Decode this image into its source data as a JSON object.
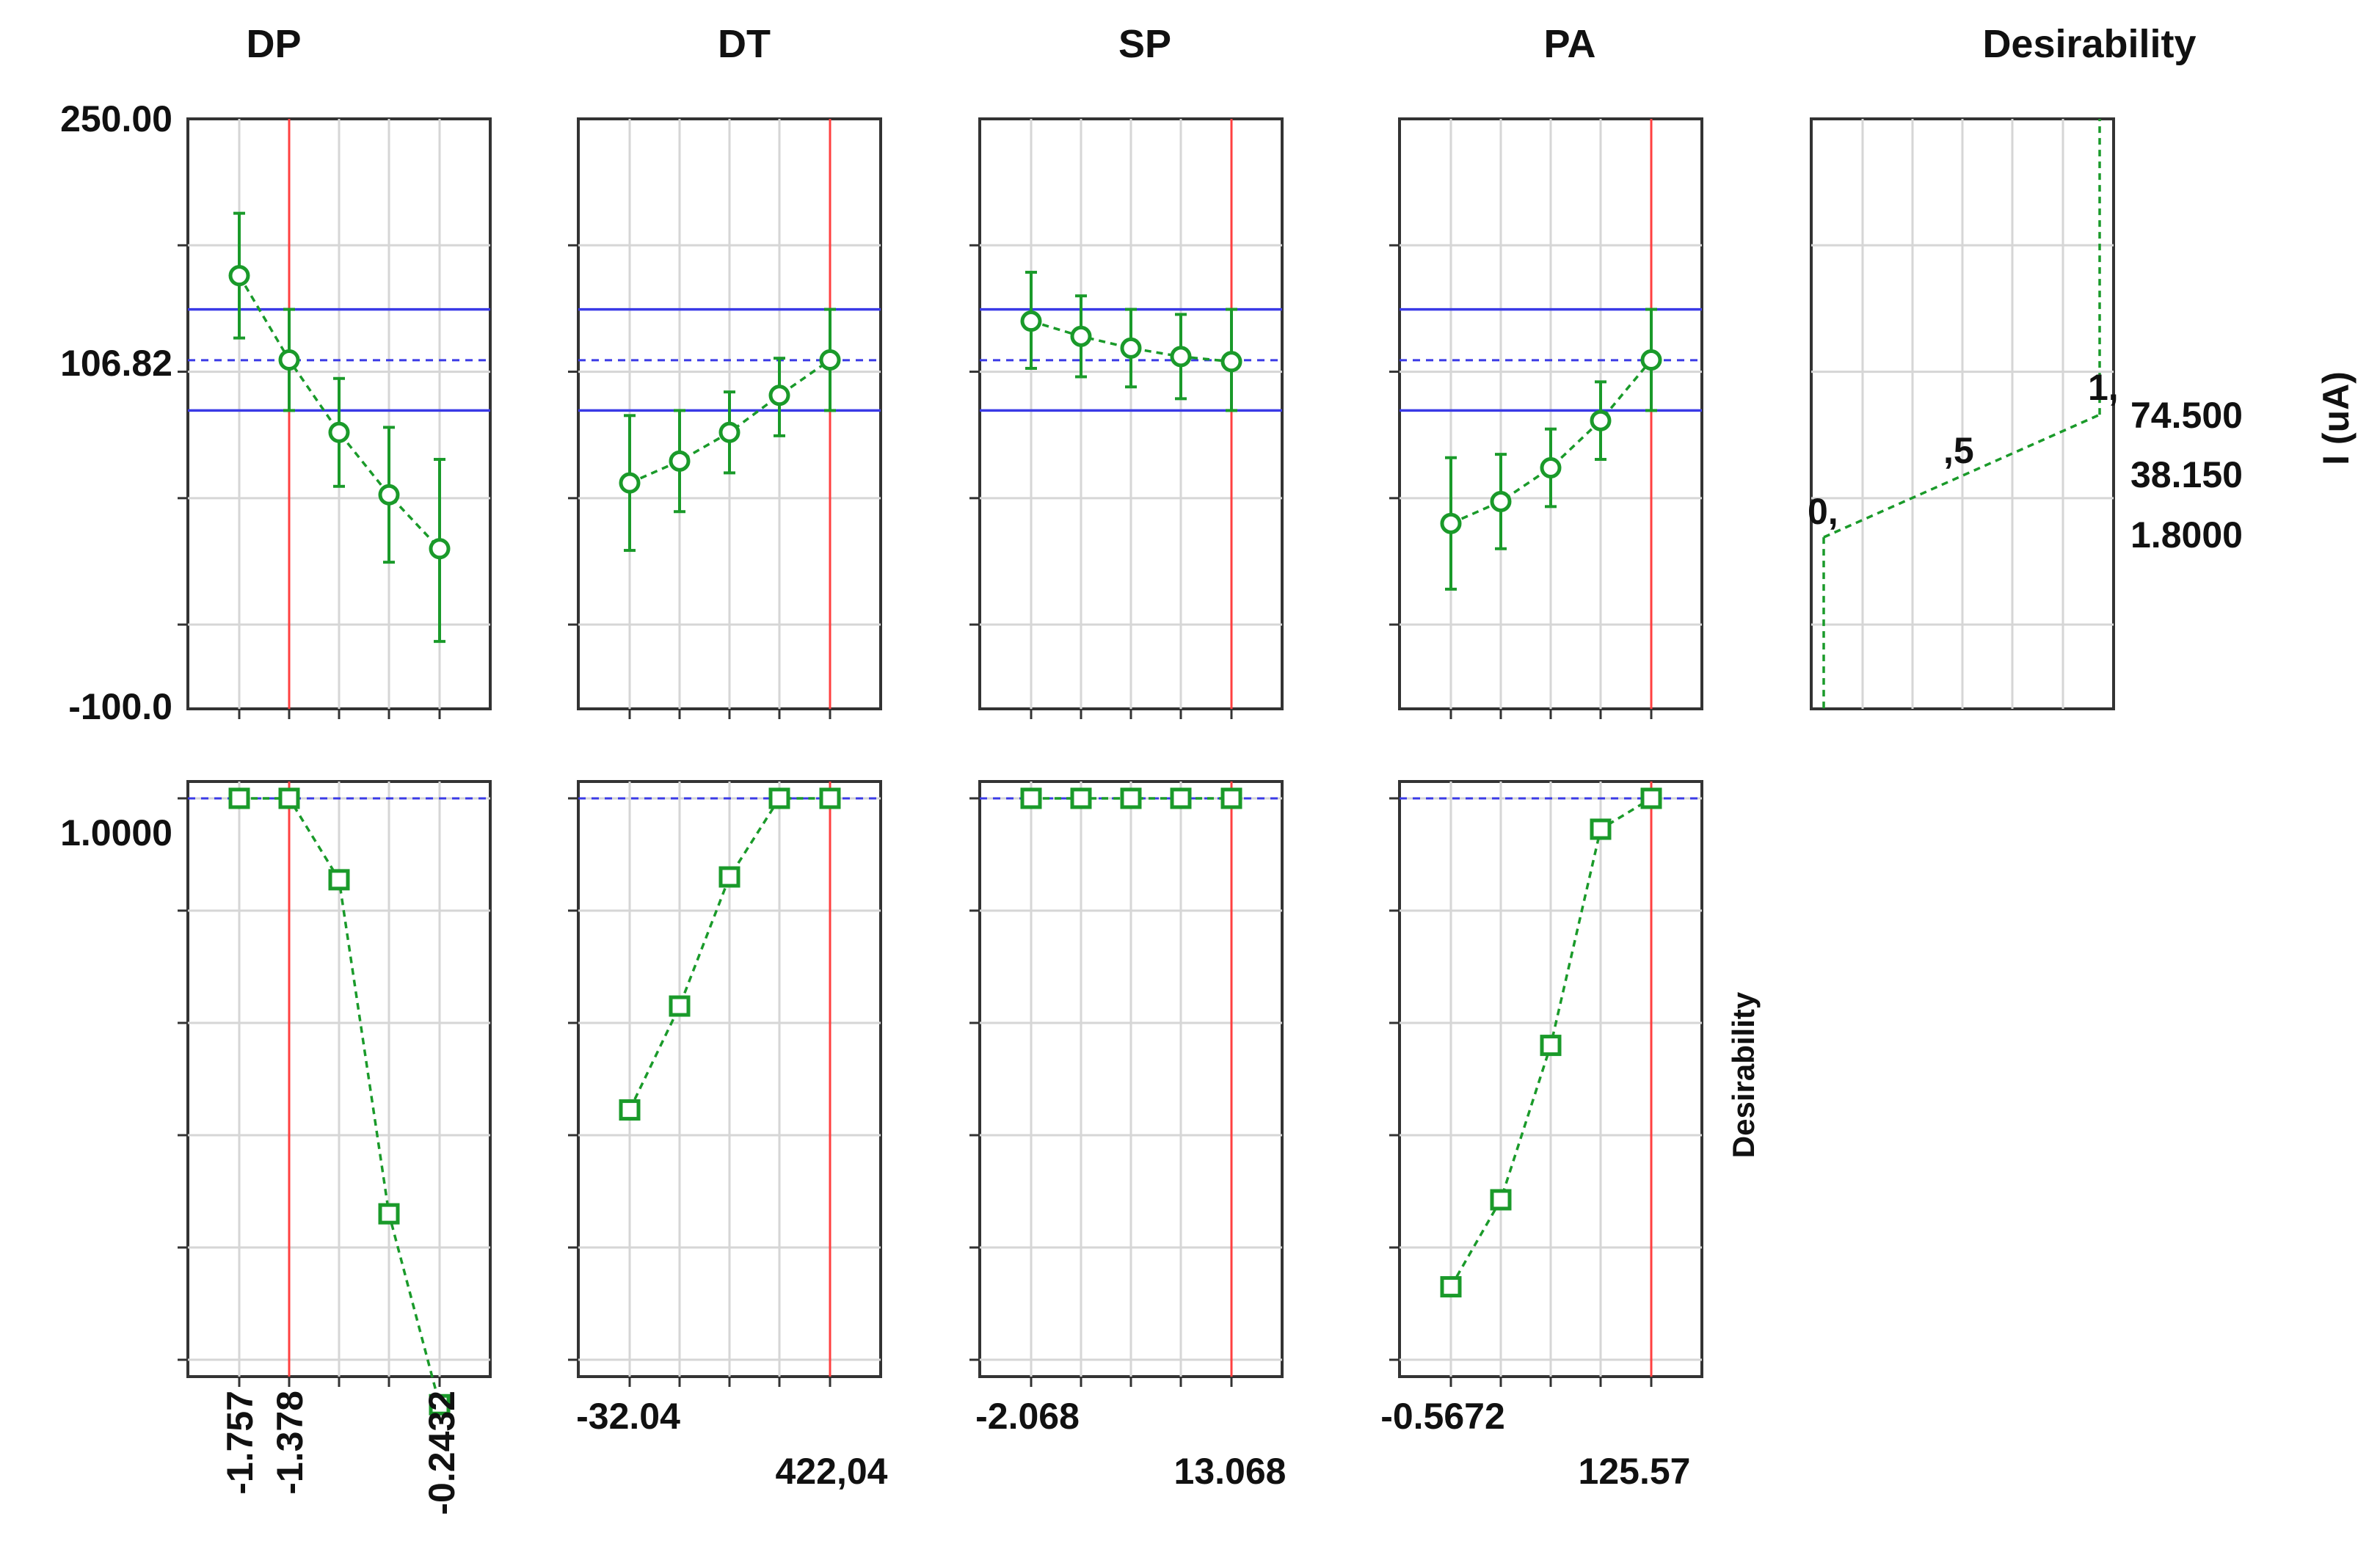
{
  "chart_data": {
    "type": "profiler",
    "title": "",
    "columns": [
      {
        "name": "DP",
        "tick_labels": [
          "-1.757",
          "-1.378",
          "-0.2432"
        ]
      },
      {
        "name": "DT",
        "tick_labels": [
          "-32.04",
          "422,04"
        ]
      },
      {
        "name": "SP",
        "tick_labels": [
          "-2.068",
          "13.068"
        ]
      },
      {
        "name": "PA",
        "tick_labels": [
          "-0.5672",
          "125.57"
        ]
      },
      {
        "name": "Desirability"
      }
    ],
    "response": {
      "ylabel": "I (uA)",
      "ylim": [
        -100.0,
        250.0
      ],
      "ytick_labels": [
        "250.00",
        "106.82",
        "-100.0"
      ],
      "prediction": 106.82,
      "ci_band": [
        77.0,
        137.0
      ],
      "desirability_spec": {
        "points": [
          [
            0,
            1.8
          ],
          [
            0.5,
            38.15
          ],
          [
            1,
            74.5
          ]
        ],
        "point_labels": [
          "0,",
          ",5",
          "1,"
        ],
        "value_labels": [
          "74.500",
          "38.150",
          "1.8000"
        ]
      }
    },
    "desirability": {
      "ylabel": "Desirability",
      "ytick_labels": [
        "1.0000"
      ],
      "ylim": [
        -0.03,
        1.03
      ]
    },
    "panels": [
      {
        "factor": "DP",
        "current_index": 1,
        "y": [
          157,
          107,
          64,
          27,
          -5
        ],
        "ci_lo": [
          120,
          77,
          32,
          -13,
          -60
        ],
        "ci_hi": [
          194,
          137,
          96,
          67,
          48
        ],
        "desirability": [
          1.0,
          1.0,
          0.855,
          0.26,
          -0.08
        ]
      },
      {
        "factor": "DT",
        "current_index": 4,
        "y": [
          34,
          47,
          64,
          86,
          107
        ],
        "ci_lo": [
          -6,
          17,
          40,
          62,
          77
        ],
        "ci_hi": [
          74,
          77,
          88,
          108,
          137
        ],
        "desirability": [
          0.445,
          0.63,
          0.86,
          1.0,
          1.0
        ]
      },
      {
        "factor": "SP",
        "current_index": 4,
        "y": [
          130,
          121,
          114,
          109,
          106
        ],
        "ci_lo": [
          102,
          97,
          91,
          84,
          77
        ],
        "ci_hi": [
          159,
          145,
          137,
          134,
          137
        ],
        "desirability": [
          1.0,
          1.0,
          1.0,
          1.0,
          1.0
        ]
      },
      {
        "factor": "PA",
        "current_index": 4,
        "y": [
          10,
          23,
          43,
          71,
          107
        ],
        "ci_lo": [
          -29,
          -5,
          20,
          48,
          77
        ],
        "ci_hi": [
          49,
          51,
          66,
          94,
          137
        ],
        "desirability": [
          0.13,
          0.285,
          0.56,
          0.945,
          1.0
        ]
      }
    ]
  }
}
